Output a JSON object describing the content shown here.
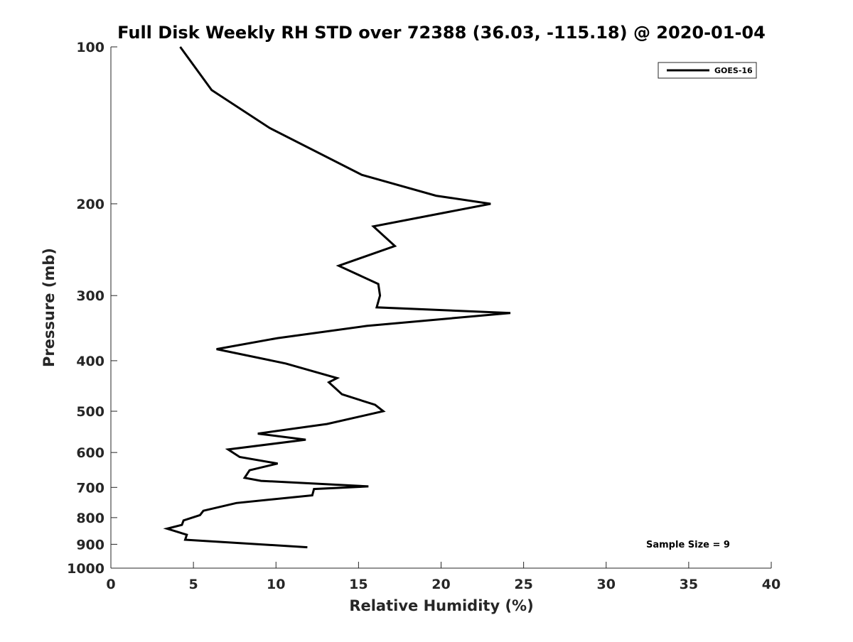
{
  "chart_data": {
    "type": "line",
    "title": "Full Disk Weekly RH STD over 72388 (36.03, -115.18) @ 2020-01-04",
    "xlabel": "Relative Humidity (%)",
    "ylabel": "Pressure (mb)",
    "xlim": [
      0,
      40
    ],
    "ylim": [
      100,
      1000
    ],
    "y_scale": "log",
    "y_reversed": true,
    "grid": false,
    "legend_position": "top-right",
    "x_ticks": [
      0,
      5,
      10,
      15,
      20,
      25,
      30,
      35,
      40
    ],
    "x_tick_labels": [
      "0",
      "5",
      "10",
      "15",
      "20",
      "25",
      "30",
      "35",
      "40"
    ],
    "y_ticks": [
      100,
      200,
      300,
      400,
      500,
      600,
      700,
      800,
      900,
      1000
    ],
    "y_tick_labels": [
      "100",
      "200",
      "300",
      "400",
      "500",
      "600",
      "700",
      "800",
      "900",
      "1000"
    ],
    "series": [
      {
        "name": "GOES-16",
        "color": "#000000",
        "x": [
          4.2,
          6.1,
          9.6,
          15.2,
          19.7,
          23.0,
          15.9,
          17.2,
          13.8,
          16.2,
          16.3,
          16.1,
          24.2,
          15.5,
          10.1,
          6.4,
          10.6,
          13.7,
          13.2,
          14.0,
          16.0,
          16.5,
          13.1,
          8.9,
          11.8,
          7.1,
          7.8,
          10.1,
          8.4,
          8.1,
          9.1,
          15.6,
          12.3,
          12.2,
          7.6,
          5.6,
          5.4,
          4.4,
          4.3,
          3.4,
          4.6,
          4.5,
          11.9
        ],
        "y": [
          100,
          121,
          143,
          176,
          193,
          200,
          221,
          241,
          263,
          285,
          300,
          316,
          324,
          343,
          362,
          380,
          405,
          432,
          440,
          464,
          486,
          500,
          529,
          552,
          567,
          592,
          612,
          630,
          649,
          671,
          680,
          697,
          705,
          725,
          750,
          776,
          791,
          810,
          826,
          840,
          863,
          882,
          912
        ]
      }
    ],
    "annotations": [
      "Sample Size = 9"
    ]
  }
}
